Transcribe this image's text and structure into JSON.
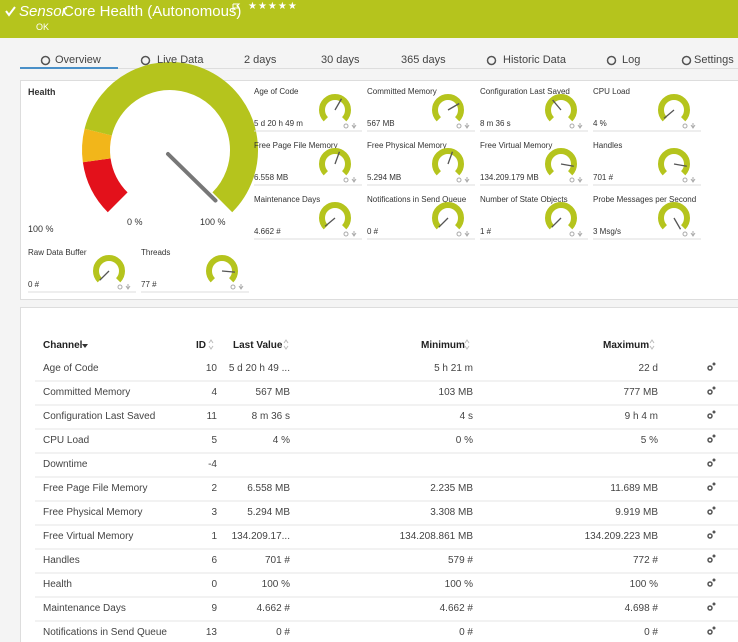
{
  "header": {
    "prefix": "Sensor",
    "title": "Core Health (Autonomous)",
    "stars": "★★★★★",
    "status": "OK"
  },
  "tabs": [
    "Overview",
    "Live Data",
    "2 days",
    "30 days",
    "365 days",
    "Historic Data",
    "Log",
    "Settings"
  ],
  "health": {
    "title": "Health",
    "value": "100 %",
    "min": "0 %",
    "max": "100 %"
  },
  "gauges": [
    {
      "name": "Age of Code",
      "value": "5 d 20 h 49 m"
    },
    {
      "name": "Committed Memory",
      "value": "567 MB"
    },
    {
      "name": "Configuration Last Saved",
      "value": "8 m 36 s"
    },
    {
      "name": "CPU Load",
      "value": "4 %"
    },
    {
      "name": "Free Page File Memory",
      "value": "6.558 MB"
    },
    {
      "name": "Free Physical Memory",
      "value": "5.294 MB"
    },
    {
      "name": "Free Virtual Memory",
      "value": "134.209.179 MB"
    },
    {
      "name": "Handles",
      "value": "701 #"
    },
    {
      "name": "Maintenance Days",
      "value": "4.662 #"
    },
    {
      "name": "Notifications in Send Queue",
      "value": "0 #"
    },
    {
      "name": "Number of State Objects",
      "value": "1 #"
    },
    {
      "name": "Probe Messages per Second",
      "value": "3 Msg/s"
    },
    {
      "name": "Raw Data Buffer",
      "value": "0 #"
    },
    {
      "name": "Threads",
      "value": "77 #"
    }
  ],
  "table": {
    "columns": [
      "Channel",
      "ID",
      "Last Value",
      "Minimum",
      "Maximum"
    ],
    "rows": [
      [
        "Age of Code",
        10,
        "5 d 20 h 49 ...",
        "5 h 21 m",
        "22 d"
      ],
      [
        "Committed Memory",
        4,
        "567 MB",
        "103 MB",
        "777 MB"
      ],
      [
        "Configuration Last Saved",
        11,
        "8 m 36 s",
        "4 s",
        "9 h 4 m"
      ],
      [
        "CPU Load",
        5,
        "4 %",
        "0 %",
        "5 %"
      ],
      [
        "Downtime",
        -4,
        null,
        null,
        null
      ],
      [
        "Free Page File Memory",
        2,
        "6.558 MB",
        "2.235 MB",
        "11.689 MB"
      ],
      [
        "Free Physical Memory",
        3,
        "5.294 MB",
        "3.308 MB",
        "9.919 MB"
      ],
      [
        "Free Virtual Memory",
        1,
        "134.209.17...",
        "134.208.861 MB",
        "134.209.223 MB"
      ],
      [
        "Handles",
        6,
        "701 #",
        "579 #",
        "772 #"
      ],
      [
        "Health",
        0,
        "100 %",
        "100 %",
        "100 %"
      ],
      [
        "Maintenance Days",
        9,
        "4.662 #",
        "4.662 #",
        "4.698 #"
      ],
      [
        "Notifications in Send Queue",
        13,
        "0 #",
        "0 #",
        "0 #"
      ]
    ]
  }
}
